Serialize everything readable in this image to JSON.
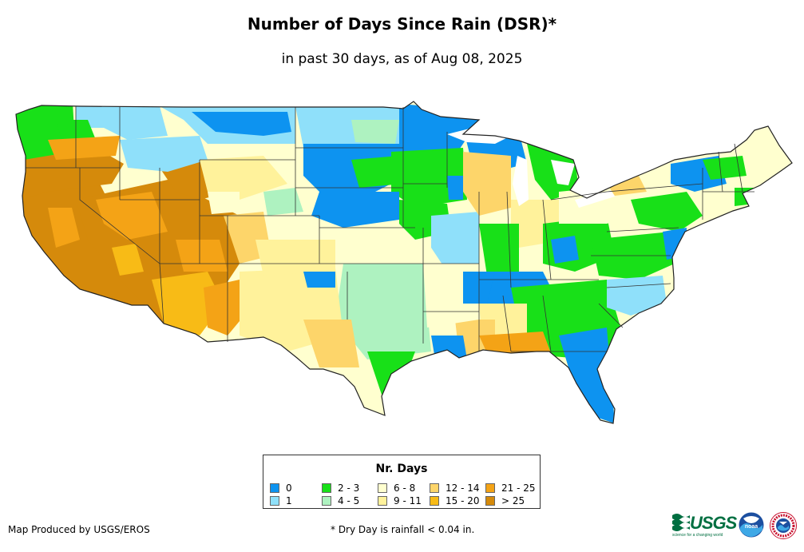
{
  "title": "Number of Days Since Rain (DSR)*",
  "subtitle": "in past 30 days, as of Aug 08, 2025",
  "legend": {
    "title": "Nr. Days",
    "items": [
      {
        "label": "0",
        "color": "#0d93f0"
      },
      {
        "label": "1",
        "color": "#8fe0fa"
      },
      {
        "label": "2 - 3",
        "color": "#18e018"
      },
      {
        "label": "4 - 5",
        "color": "#aef2c0"
      },
      {
        "label": "6 - 8",
        "color": "#ffffcf"
      },
      {
        "label": "9 - 11",
        "color": "#fff29b"
      },
      {
        "label": "12 - 14",
        "color": "#fdd56a"
      },
      {
        "label": "15 - 20",
        "color": "#f8bb16"
      },
      {
        "label": "21 - 25",
        "color": "#f4a316"
      },
      {
        "label": "> 25",
        "color": "#d58a0b"
      }
    ]
  },
  "credit": "Map Produced by USGS/EROS",
  "footnote": "* Dry Day is rainfall < 0.04 in.",
  "logos": {
    "usgs": "USGS",
    "usgs_tagline": "science for a changing world",
    "noaa": "noaa"
  }
}
